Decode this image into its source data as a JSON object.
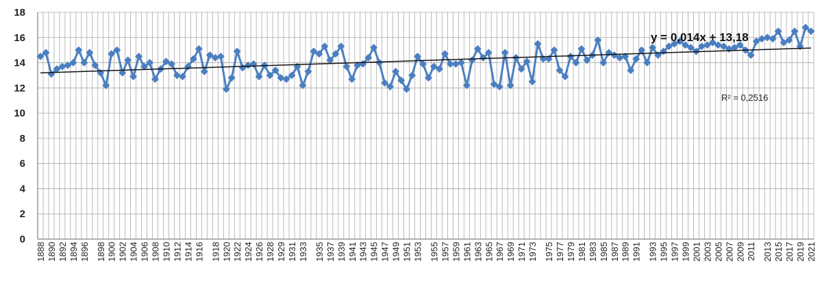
{
  "chart_data": {
    "type": "line",
    "title": "",
    "xlabel": "",
    "ylabel": "",
    "x_start": 1888,
    "x_end": 2022,
    "ylim": [
      0,
      18
    ],
    "yticks": [
      0,
      2,
      4,
      6,
      8,
      10,
      12,
      14,
      16,
      18
    ],
    "xtick_labels": [
      "1888",
      "1890",
      "1892",
      "1894",
      "1896",
      "1898",
      "1900",
      "1902",
      "1904",
      "1906",
      "1908",
      "1910",
      "1912",
      "1914",
      "1916",
      "1918",
      "1920",
      "1922",
      "1924",
      "1926",
      "1928",
      "1929",
      "1931",
      "1933",
      "1935",
      "1937",
      "1939",
      "1941",
      "1943",
      "1945",
      "1947",
      "1949",
      "1951",
      "1953",
      "1955",
      "1957",
      "1959",
      "1961",
      "1963",
      "1965",
      "1967",
      "1969",
      "1971",
      "1973",
      "1975",
      "1977",
      "1979",
      "1981",
      "1983",
      "1985",
      "1987",
      "1989",
      "1991",
      "1993",
      "1995",
      "1997",
      "1999",
      "2001",
      "2003",
      "2005",
      "2007",
      "2009",
      "2011",
      "2013",
      "2015",
      "2017",
      "2019",
      "2021"
    ],
    "grid": true,
    "series": [
      {
        "color": "#4a7fc1",
        "marker": "diamond",
        "values": [
          14.5,
          14.8,
          13.1,
          13.5,
          13.7,
          13.8,
          14.0,
          15.0,
          14.0,
          14.8,
          13.8,
          13.2,
          12.2,
          14.7,
          15.0,
          13.2,
          14.2,
          12.9,
          14.5,
          13.7,
          14.0,
          12.7,
          13.5,
          14.1,
          13.9,
          13.0,
          12.9,
          13.7,
          14.3,
          15.1,
          13.3,
          14.6,
          14.4,
          14.5,
          11.9,
          12.8,
          14.9,
          13.6,
          13.8,
          13.9,
          12.9,
          13.8,
          13.0,
          13.4,
          12.8,
          12.7,
          13.0,
          13.7,
          12.2,
          13.3,
          14.9,
          14.7,
          15.3,
          14.2,
          14.7,
          15.3,
          13.7,
          12.7,
          13.8,
          13.9,
          14.4,
          15.2,
          14.0,
          12.4,
          12.1,
          13.3,
          12.6,
          11.9,
          13.0,
          14.5,
          13.9,
          12.8,
          13.7,
          13.5,
          14.7,
          13.9,
          13.9,
          14.0,
          12.2,
          14.2,
          15.1,
          14.4,
          14.8,
          12.3,
          12.1,
          14.8,
          12.2,
          14.4,
          13.5,
          14.1,
          12.5,
          15.5,
          14.3,
          14.3,
          15.0,
          13.4,
          12.9,
          14.5,
          14.0,
          15.1,
          14.2,
          14.6,
          15.8,
          14.0,
          14.8,
          14.6,
          14.4,
          14.5,
          13.4,
          14.3,
          15.0,
          14.0,
          15.2,
          14.6,
          14.9,
          15.3,
          15.5,
          15.7,
          15.4,
          15.2,
          14.9,
          15.3,
          15.4,
          15.6,
          15.4,
          15.3,
          15.1,
          15.2,
          15.4,
          15.0,
          14.6,
          15.7,
          15.9,
          16.0,
          15.9,
          16.5,
          15.6,
          15.8,
          16.5,
          15.3,
          16.8,
          16.5
        ]
      }
    ],
    "trendline": {
      "color": "#111111",
      "slope": 0.014,
      "intercept": 13.18,
      "equation_label": "y = 0,014x + 13,18",
      "r2_label": "R² = 0,2516"
    }
  }
}
